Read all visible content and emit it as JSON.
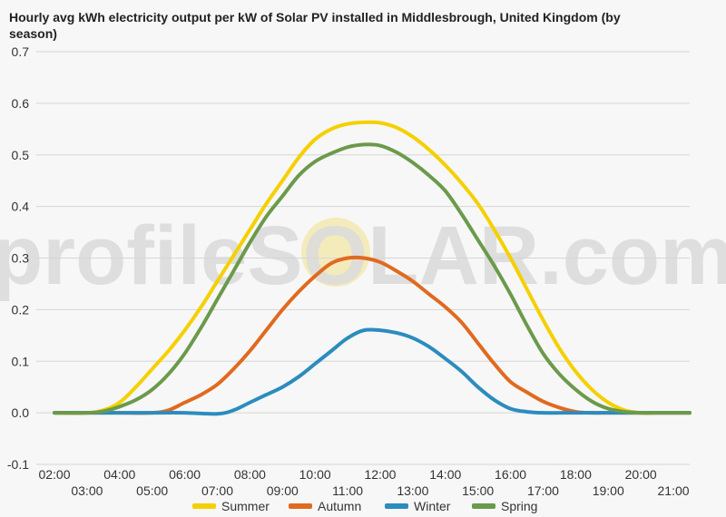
{
  "chart_data": {
    "type": "line",
    "title": "Hourly avg kWh electricity output per kW of Solar PV installed in Middlesbrough, United Kingdom (by season)",
    "watermark": "profileSOLAR.com",
    "xlabel": "",
    "ylabel": "",
    "x_ticks": [
      "02:00",
      "03:00",
      "04:00",
      "05:00",
      "06:00",
      "07:00",
      "08:00",
      "09:00",
      "10:00",
      "11:00",
      "12:00",
      "13:00",
      "14:00",
      "15:00",
      "16:00",
      "17:00",
      "18:00",
      "19:00",
      "20:00",
      "21:00"
    ],
    "y_ticks": [
      "-0.1",
      "0.0",
      "0.1",
      "0.2",
      "0.3",
      "0.4",
      "0.5",
      "0.6",
      "0.7"
    ],
    "ylim": [
      -0.1,
      0.7
    ],
    "xlim": [
      2,
      21.5
    ],
    "grid": true,
    "legend_position": "bottom",
    "series": [
      {
        "name": "Summer",
        "color": "#f5d000",
        "x": [
          2,
          3,
          3.5,
          4,
          4.5,
          5,
          5.5,
          6,
          6.5,
          7,
          7.5,
          8,
          8.5,
          9,
          9.5,
          10,
          10.5,
          11,
          11.5,
          12,
          12.5,
          13,
          13.5,
          14,
          14.5,
          15,
          15.5,
          16,
          16.5,
          17,
          17.5,
          18,
          18.5,
          19,
          19.5,
          20,
          20.5,
          21,
          21.5
        ],
        "values": [
          0,
          0,
          0.005,
          0.02,
          0.05,
          0.085,
          0.12,
          0.16,
          0.205,
          0.255,
          0.305,
          0.355,
          0.405,
          0.45,
          0.495,
          0.53,
          0.55,
          0.56,
          0.563,
          0.562,
          0.553,
          0.535,
          0.51,
          0.48,
          0.445,
          0.405,
          0.355,
          0.3,
          0.24,
          0.18,
          0.125,
          0.08,
          0.045,
          0.02,
          0.005,
          0,
          0,
          0,
          0
        ]
      },
      {
        "name": "Autumn",
        "color": "#e06a1f",
        "x": [
          2,
          3,
          4,
          5,
          5.5,
          6,
          6.5,
          7,
          7.5,
          8,
          8.5,
          9,
          9.5,
          10,
          10.5,
          11,
          11.5,
          12,
          12.5,
          13,
          13.5,
          14,
          14.5,
          15,
          15.5,
          16,
          16.5,
          17,
          17.5,
          18,
          18.5,
          19,
          20,
          21,
          21.5
        ],
        "values": [
          0,
          0,
          0,
          0,
          0.005,
          0.02,
          0.035,
          0.055,
          0.085,
          0.12,
          0.16,
          0.2,
          0.235,
          0.265,
          0.29,
          0.3,
          0.3,
          0.292,
          0.275,
          0.255,
          0.23,
          0.205,
          0.175,
          0.135,
          0.095,
          0.06,
          0.04,
          0.022,
          0.01,
          0.002,
          0,
          0,
          0,
          0,
          0
        ]
      },
      {
        "name": "Winter",
        "color": "#2b8cbe",
        "x": [
          2,
          3,
          4,
          5,
          6,
          7,
          7.5,
          8,
          8.5,
          9,
          9.5,
          10,
          10.5,
          11,
          11.5,
          12,
          12.5,
          13,
          13.5,
          14,
          14.5,
          15,
          15.5,
          16,
          16.5,
          17,
          18,
          19,
          20,
          21,
          21.5
        ],
        "values": [
          0,
          0,
          0,
          0,
          0,
          -0.002,
          0.005,
          0.02,
          0.035,
          0.05,
          0.07,
          0.095,
          0.12,
          0.145,
          0.16,
          0.16,
          0.155,
          0.145,
          0.128,
          0.105,
          0.08,
          0.05,
          0.025,
          0.008,
          0.002,
          0,
          0,
          0,
          0,
          0,
          0
        ]
      },
      {
        "name": "Spring",
        "color": "#6b9a4b",
        "x": [
          2,
          3,
          3.5,
          4,
          4.5,
          5,
          5.5,
          6,
          6.5,
          7,
          7.5,
          8,
          8.5,
          9,
          9.5,
          10,
          10.5,
          11,
          11.5,
          12,
          12.5,
          13,
          13.5,
          14,
          14.5,
          15,
          15.5,
          16,
          16.5,
          17,
          17.5,
          18,
          18.5,
          19,
          19.5,
          20,
          20.5,
          21,
          21.5
        ],
        "values": [
          0,
          0,
          0.003,
          0.012,
          0.025,
          0.045,
          0.075,
          0.115,
          0.165,
          0.22,
          0.275,
          0.33,
          0.38,
          0.42,
          0.46,
          0.487,
          0.503,
          0.515,
          0.52,
          0.518,
          0.505,
          0.485,
          0.46,
          0.43,
          0.385,
          0.335,
          0.285,
          0.23,
          0.17,
          0.115,
          0.075,
          0.045,
          0.022,
          0.008,
          0.002,
          0,
          0,
          0,
          0
        ]
      }
    ]
  }
}
